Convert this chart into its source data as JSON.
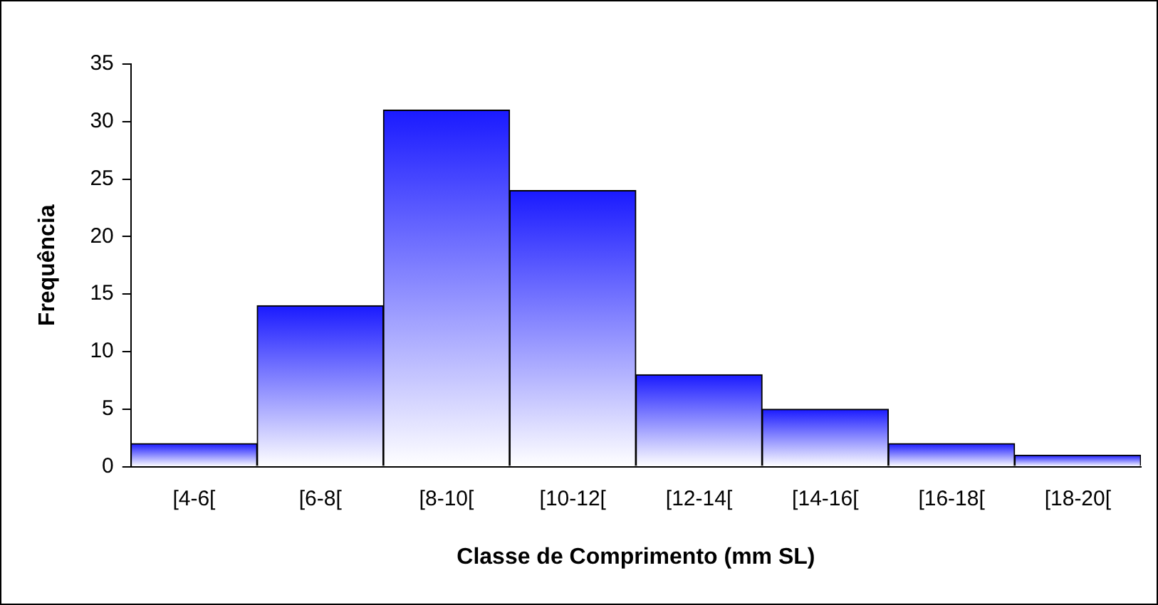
{
  "chart_data": {
    "type": "bar",
    "xlabel": "Classe de Comprimento (mm SL)",
    "ylabel": "Frequência",
    "categories": [
      "[4-6[",
      "[6-8[",
      "[8-10[",
      "[10-12[",
      "[12-14[",
      "[14-16[",
      "[16-18[",
      "[18-20["
    ],
    "values": [
      2,
      14,
      31,
      24,
      8,
      5,
      2,
      1
    ],
    "color": "#1a1aff",
    "ylim": [
      0,
      35
    ],
    "yticks": [
      0,
      5,
      10,
      15,
      20,
      25,
      30,
      35
    ],
    "grid": false,
    "legend": false
  }
}
